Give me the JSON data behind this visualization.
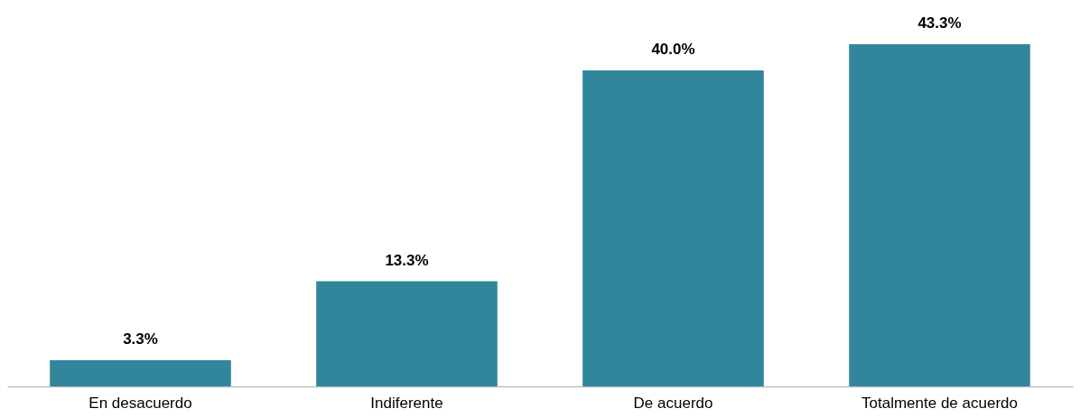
{
  "chart_data": {
    "type": "bar",
    "categories": [
      "En desacuerdo",
      "Indiferente",
      "De acuerdo",
      "Totalmente de acuerdo"
    ],
    "values": [
      3.3,
      13.3,
      40.0,
      43.3
    ],
    "value_labels": [
      "3.3%",
      "13.3%",
      "40.0%",
      "43.3%"
    ],
    "color": "#31869b"
  }
}
